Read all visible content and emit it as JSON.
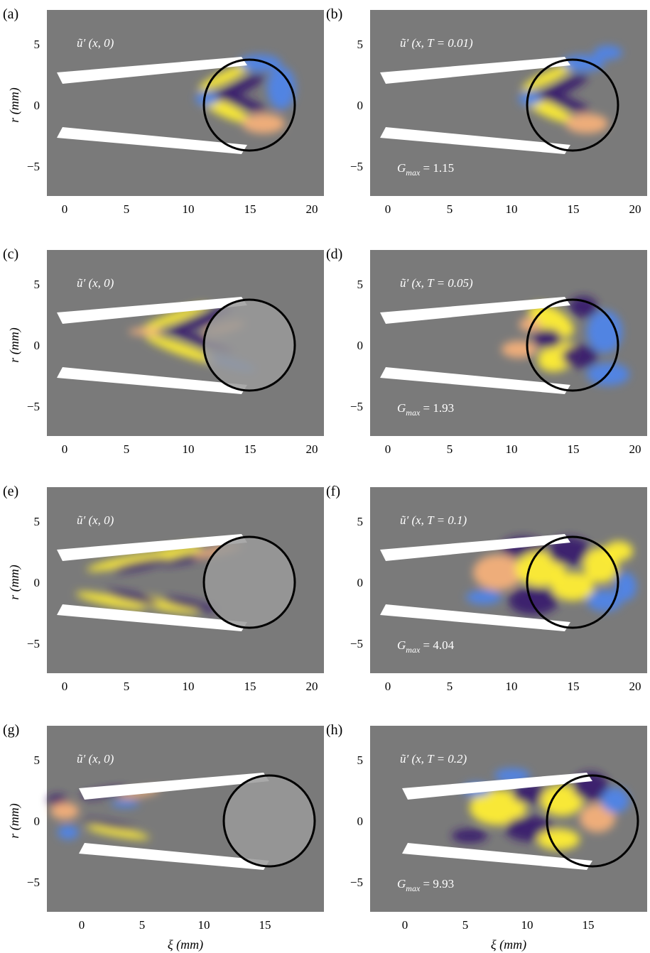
{
  "figure": {
    "panels": [
      {
        "id": "a",
        "label": "(a)",
        "field": "ũ′ (x, 0)",
        "gmax": "",
        "x_ticks": [
          "0",
          "5",
          "10",
          "15",
          "20"
        ],
        "y_ticks": [
          "5",
          "0",
          "−5"
        ],
        "ylabel": "r (mm)",
        "xlabel": ""
      },
      {
        "id": "b",
        "label": "(b)",
        "field": "ũ′ (x, T = 0.01)",
        "gmax": "G_max = 1.15",
        "x_ticks": [
          "0",
          "5",
          "10",
          "15",
          "20"
        ],
        "y_ticks": [
          "5",
          "0",
          "−5"
        ],
        "ylabel": "",
        "xlabel": ""
      },
      {
        "id": "c",
        "label": "(c)",
        "field": "ũ′ (x, 0)",
        "gmax": "",
        "x_ticks": [
          "0",
          "5",
          "10",
          "15",
          "20"
        ],
        "y_ticks": [
          "5",
          "0",
          "−5"
        ],
        "ylabel": "r (mm)",
        "xlabel": ""
      },
      {
        "id": "d",
        "label": "(d)",
        "field": "ũ′ (x, T = 0.05)",
        "gmax": "G_max = 1.93",
        "x_ticks": [
          "0",
          "5",
          "10",
          "15",
          "20"
        ],
        "y_ticks": [
          "5",
          "0",
          "−5"
        ],
        "ylabel": "",
        "xlabel": ""
      },
      {
        "id": "e",
        "label": "(e)",
        "field": "ũ′ (x, 0)",
        "gmax": "",
        "x_ticks": [
          "0",
          "5",
          "10",
          "15",
          "20"
        ],
        "y_ticks": [
          "5",
          "0",
          "−5"
        ],
        "ylabel": "r (mm)",
        "xlabel": ""
      },
      {
        "id": "f",
        "label": "(f)",
        "field": "ũ′ (x, T = 0.1)",
        "gmax": "G_max = 4.04",
        "x_ticks": [
          "0",
          "5",
          "10",
          "15",
          "20"
        ],
        "y_ticks": [
          "5",
          "0",
          "−5"
        ],
        "ylabel": "",
        "xlabel": ""
      },
      {
        "id": "g",
        "label": "(g)",
        "field": "ũ′ (x, 0)",
        "gmax": "",
        "x_ticks": [
          "0",
          "5",
          "10",
          "15"
        ],
        "y_ticks": [
          "5",
          "0",
          "−5"
        ],
        "ylabel": "r (mm)",
        "xlabel": "ξ (mm)"
      },
      {
        "id": "h",
        "label": "(h)",
        "field": "ũ′ (x, T = 0.2)",
        "gmax": "G_max = 9.93",
        "x_ticks": [
          "0",
          "5",
          "10",
          "15"
        ],
        "y_ticks": [
          "5",
          "0",
          "−5"
        ],
        "ylabel": "",
        "xlabel": "ξ (mm)"
      }
    ],
    "gmax_parts": {
      "b": {
        "sym": "G",
        "sub": "max",
        "val": " = 1.15"
      },
      "d": {
        "sym": "G",
        "sub": "max",
        "val": " = 1.93"
      },
      "f": {
        "sym": "G",
        "sub": "max",
        "val": " = 4.04"
      },
      "h": {
        "sym": "G",
        "sub": "max",
        "val": " = 9.93"
      }
    },
    "colors": {
      "background": "#7a7a7a",
      "positive": "#ffee33",
      "positive_weak": "#f4b07a",
      "negative": "#3a1e6e",
      "negative_weak": "#4f84e8",
      "nozzle": "#ffffff",
      "drop_fill": "#9a9a9a",
      "circle": "#000000"
    }
  }
}
